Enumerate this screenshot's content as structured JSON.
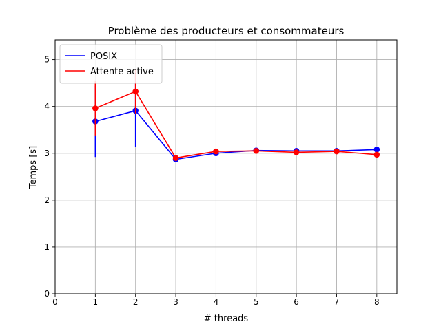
{
  "chart_data": {
    "type": "line",
    "title": "Problème des producteurs et consommateurs",
    "xlabel": "# threads",
    "ylabel": "Temps [s]",
    "xlim": [
      0,
      8.5
    ],
    "ylim": [
      0,
      5.42
    ],
    "xticks": [
      0,
      1,
      2,
      3,
      4,
      5,
      6,
      7,
      8
    ],
    "yticks": [
      0,
      1,
      2,
      3,
      4,
      5
    ],
    "grid": true,
    "legend_position": "top-left",
    "x": [
      1,
      2,
      3,
      4,
      5,
      6,
      7,
      8
    ],
    "series": [
      {
        "name": "POSIX",
        "color": "#0000ff",
        "values": [
          3.68,
          3.91,
          2.87,
          3.0,
          3.06,
          3.05,
          3.05,
          3.08
        ],
        "errors": [
          0.76,
          0.78,
          0.03,
          0.02,
          0.02,
          0.02,
          0.02,
          0.02
        ]
      },
      {
        "name": "Attente active",
        "color": "#ff0000",
        "values": [
          3.96,
          4.32,
          2.9,
          3.04,
          3.05,
          3.02,
          3.04,
          2.97
        ],
        "errors": [
          0.58,
          0.48,
          0.03,
          0.02,
          0.02,
          0.02,
          0.02,
          0.02
        ]
      }
    ]
  }
}
